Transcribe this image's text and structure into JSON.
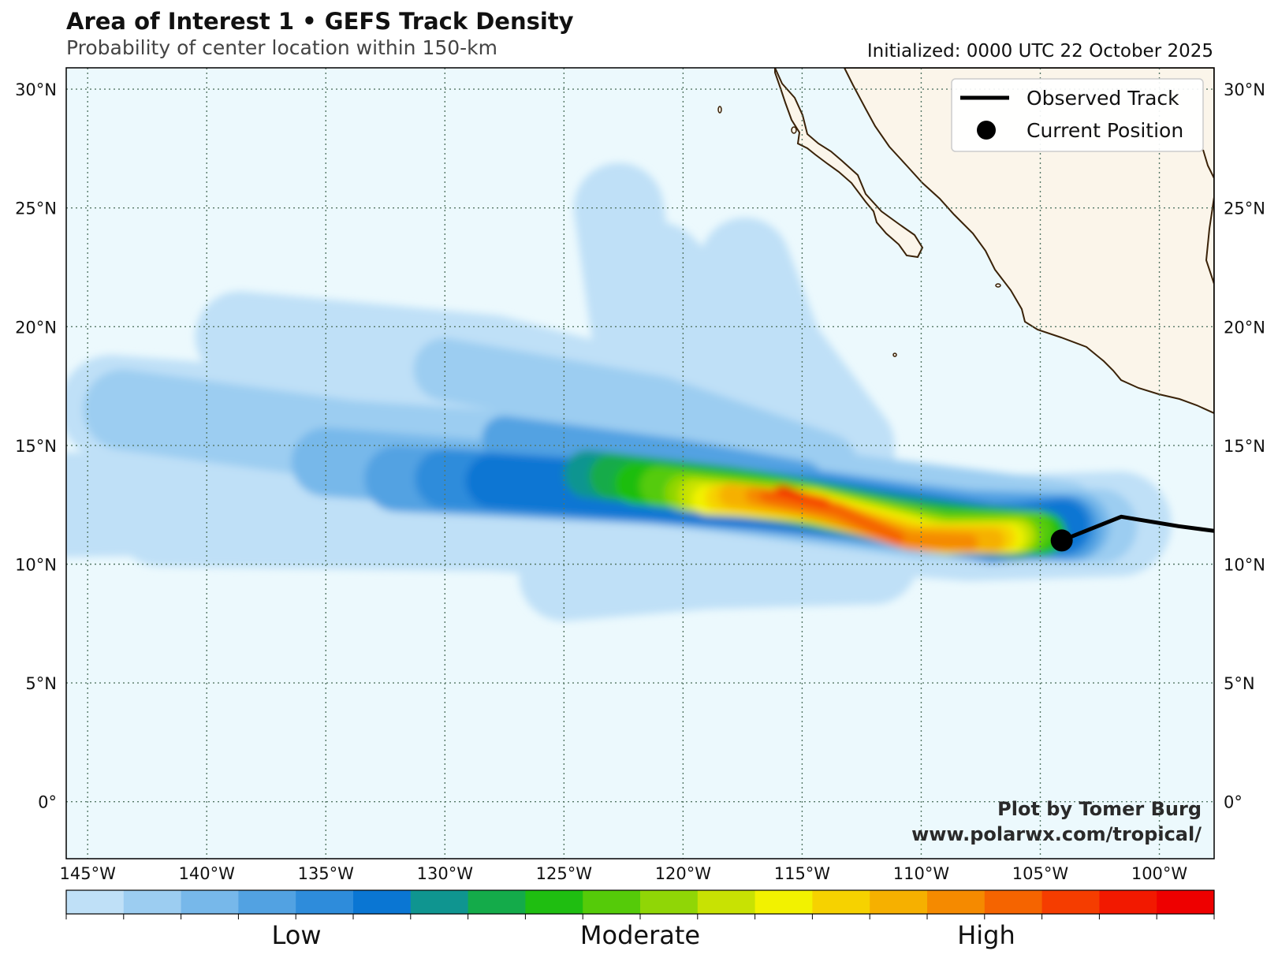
{
  "header": {
    "title": "Area of Interest 1 • GEFS Track Density",
    "subtitle": "Probability of center location within 150-km",
    "initialized": "Initialized: 0000 UTC 22 October 2025"
  },
  "legend": {
    "observed_track": "Observed Track",
    "current_position": "Current Position"
  },
  "credit": {
    "line1": "Plot by Tomer Burg",
    "line2": "www.polarwx.com/tropical/"
  },
  "axes": {
    "lat_labels": [
      "30°N",
      "25°N",
      "20°N",
      "15°N",
      "10°N",
      "5°N",
      "0°"
    ],
    "lon_labels": [
      "145°W",
      "140°W",
      "135°W",
      "130°W",
      "125°W",
      "120°W",
      "115°W",
      "110°W",
      "105°W",
      "100°W"
    ]
  },
  "colorbar": {
    "labels": [
      "Low",
      "Moderate",
      "High"
    ],
    "colors": [
      "#bfe0f7",
      "#9ccdf1",
      "#77b8ea",
      "#52a2e2",
      "#2e8cdb",
      "#0a76d3",
      "#0f9590",
      "#14ab4a",
      "#1fbe11",
      "#55cb09",
      "#90d606",
      "#c8e203",
      "#f2f200",
      "#f6d200",
      "#f6b000",
      "#f58a00",
      "#f56400",
      "#f53d00",
      "#f21900",
      "#ee0000"
    ]
  },
  "colors": {
    "ocean": "#ecf9fd",
    "land": "#fbf5ea",
    "coast": "#3a2208",
    "grid": "#557766",
    "track": "#000000"
  },
  "map_data": {
    "extent": {
      "lon_min": -145.9,
      "lon_max": -97.7,
      "lat_min": -2.4,
      "lat_max": 30.9
    },
    "current_position": {
      "lon": -104.1,
      "lat": 11.0
    },
    "observed_track": [
      [
        -104.1,
        11.0
      ],
      [
        -101.6,
        12.0
      ],
      [
        -99.2,
        11.6
      ],
      [
        -97.7,
        11.4
      ]
    ]
  }
}
